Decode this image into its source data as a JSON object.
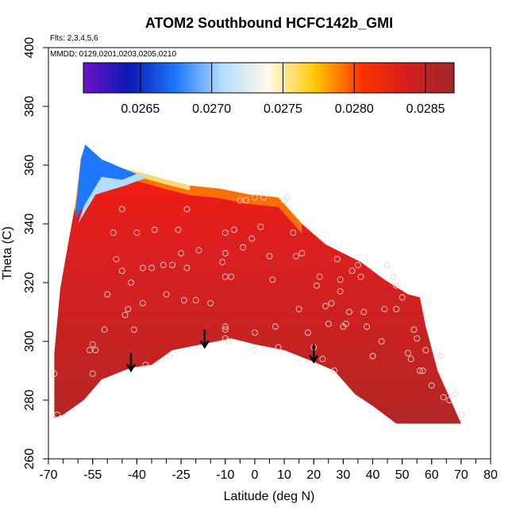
{
  "chart_data": {
    "type": "heatmap",
    "title": "ATOM2 Southbound HCFC142b_GMI",
    "flights_note": "Flts: 2,3,4,5,6",
    "dates_note": "MMDD: 0129,0201,0203,0205,0210",
    "xlabel": "Latitude (deg N)",
    "ylabel": "Theta (C)",
    "xlim": [
      -70,
      80
    ],
    "ylim": [
      260,
      400
    ],
    "x_ticks": [
      -70,
      -55,
      -40,
      -25,
      -10,
      0,
      10,
      20,
      30,
      40,
      50,
      60,
      70,
      80
    ],
    "x_tick_labels": [
      "-70",
      "-55",
      "-40",
      "-25",
      "-10",
      "0",
      "10",
      "20",
      "30",
      "40",
      "50",
      "60",
      "70",
      "80"
    ],
    "y_ticks": [
      260,
      280,
      300,
      320,
      340,
      360,
      380,
      400
    ],
    "y_tick_labels": [
      "260",
      "280",
      "300",
      "320",
      "340",
      "360",
      "380",
      "400"
    ],
    "colorbar": {
      "range": [
        0.0261,
        0.0287
      ],
      "tick_values": [
        0.0265,
        0.027,
        0.0275,
        0.028,
        0.0285
      ],
      "tick_labels": [
        "0.0265",
        "0.0270",
        "0.0275",
        "0.0280",
        "0.0285"
      ],
      "colors": [
        "#6b12c8",
        "#0a1ab4",
        "#1e78ff",
        "#b4dcff",
        "#fffae6",
        "#ffc800",
        "#ff3200",
        "#d21e1e",
        "#a02828"
      ]
    },
    "field_outline": {
      "upper_boundary": [
        [
          -68,
          296
        ],
        [
          -66,
          318
        ],
        [
          -63,
          335
        ],
        [
          -61,
          346
        ],
        [
          -59,
          362
        ],
        [
          -57.5,
          367
        ],
        [
          -52,
          362
        ],
        [
          -45,
          359
        ],
        [
          -37,
          357
        ],
        [
          -30,
          355
        ],
        [
          -22,
          353
        ],
        [
          -12,
          352
        ],
        [
          -2,
          350
        ],
        [
          8,
          349
        ],
        [
          16,
          340
        ],
        [
          24,
          333
        ],
        [
          30,
          330
        ],
        [
          36,
          327
        ],
        [
          44,
          321
        ],
        [
          52,
          316
        ],
        [
          56,
          315
        ],
        [
          58,
          305
        ],
        [
          62,
          290
        ],
        [
          66,
          281
        ],
        [
          70,
          272
        ]
      ],
      "lower_boundary": [
        [
          -68,
          274
        ],
        [
          -65,
          275
        ],
        [
          -58,
          280
        ],
        [
          -52,
          287
        ],
        [
          -42,
          291
        ],
        [
          -35,
          292
        ],
        [
          -28,
          297
        ],
        [
          -18,
          299
        ],
        [
          -8,
          301
        ],
        [
          0,
          299
        ],
        [
          10,
          297
        ],
        [
          20,
          293
        ],
        [
          27,
          290
        ],
        [
          34,
          282
        ],
        [
          40,
          278
        ],
        [
          48,
          272
        ],
        [
          56,
          272
        ],
        [
          64,
          272
        ],
        [
          70,
          272
        ]
      ],
      "colorbar_value_ranges": {
        "core": 0.0285,
        "upper_edge_orange": 0.028,
        "southern_top_blue": 0.0268
      }
    },
    "observation_points": [
      [
        -68,
        289
      ],
      [
        -67,
        275
      ],
      [
        -56,
        297
      ],
      [
        -55,
        299
      ],
      [
        -55,
        289
      ],
      [
        -54,
        297
      ],
      [
        -51,
        304
      ],
      [
        -50,
        316
      ],
      [
        -48,
        337
      ],
      [
        -47,
        328
      ],
      [
        -45,
        345
      ],
      [
        -45,
        324
      ],
      [
        -44,
        309
      ],
      [
        -43,
        311
      ],
      [
        -42,
        320
      ],
      [
        -41,
        304
      ],
      [
        -40,
        337
      ],
      [
        -38,
        325
      ],
      [
        -38,
        313
      ],
      [
        -37,
        292
      ],
      [
        -35,
        325
      ],
      [
        -34,
        338
      ],
      [
        -31,
        326
      ],
      [
        -30,
        316
      ],
      [
        -29,
        295
      ],
      [
        -28,
        326
      ],
      [
        -26,
        338
      ],
      [
        -25,
        330
      ],
      [
        -24,
        314
      ],
      [
        -23,
        325
      ],
      [
        -23,
        345
      ],
      [
        -20,
        314
      ],
      [
        -19,
        331
      ],
      [
        -15,
        313
      ],
      [
        -11,
        327
      ],
      [
        -10,
        337
      ],
      [
        -10,
        330
      ],
      [
        -10,
        322
      ],
      [
        -10,
        305
      ],
      [
        -10,
        304
      ],
      [
        -10,
        301
      ],
      [
        -9,
        300
      ],
      [
        -8,
        322
      ],
      [
        -7,
        338
      ],
      [
        -5,
        348
      ],
      [
        -4,
        332
      ],
      [
        -3,
        348
      ],
      [
        -1,
        335
      ],
      [
        0,
        303
      ],
      [
        0,
        297
      ],
      [
        0,
        349
      ],
      [
        2,
        339
      ],
      [
        3,
        349
      ],
      [
        5,
        329
      ],
      [
        6,
        321
      ],
      [
        7,
        305
      ],
      [
        8,
        298
      ],
      [
        10,
        348
      ],
      [
        11,
        349
      ],
      [
        13,
        337
      ],
      [
        14,
        329
      ],
      [
        15,
        311
      ],
      [
        16,
        330
      ],
      [
        18,
        303
      ],
      [
        20,
        298
      ],
      [
        21,
        319
      ],
      [
        22,
        322
      ],
      [
        23,
        294
      ],
      [
        24,
        312
      ],
      [
        25,
        306
      ],
      [
        26,
        313
      ],
      [
        27,
        290
      ],
      [
        28,
        328
      ],
      [
        29,
        317
      ],
      [
        29,
        321
      ],
      [
        30,
        305
      ],
      [
        31,
        306
      ],
      [
        32,
        310
      ],
      [
        33,
        324
      ],
      [
        35,
        326
      ],
      [
        36,
        322
      ],
      [
        37,
        310
      ],
      [
        38,
        305
      ],
      [
        40,
        295
      ],
      [
        43,
        300
      ],
      [
        44,
        311
      ],
      [
        45,
        326
      ],
      [
        47,
        322
      ],
      [
        48,
        311
      ],
      [
        48,
        319
      ],
      [
        50,
        315
      ],
      [
        52,
        296
      ],
      [
        53,
        294
      ],
      [
        54,
        304
      ],
      [
        55,
        301
      ],
      [
        56,
        290
      ],
      [
        57,
        290
      ],
      [
        58,
        297
      ],
      [
        60,
        285
      ],
      [
        63,
        295
      ],
      [
        64,
        281
      ],
      [
        66,
        280
      ],
      [
        68,
        282
      ],
      [
        70,
        275
      ]
    ],
    "arrows": [
      [
        -42,
        296
      ],
      [
        -17,
        304
      ],
      [
        20,
        299
      ]
    ]
  }
}
